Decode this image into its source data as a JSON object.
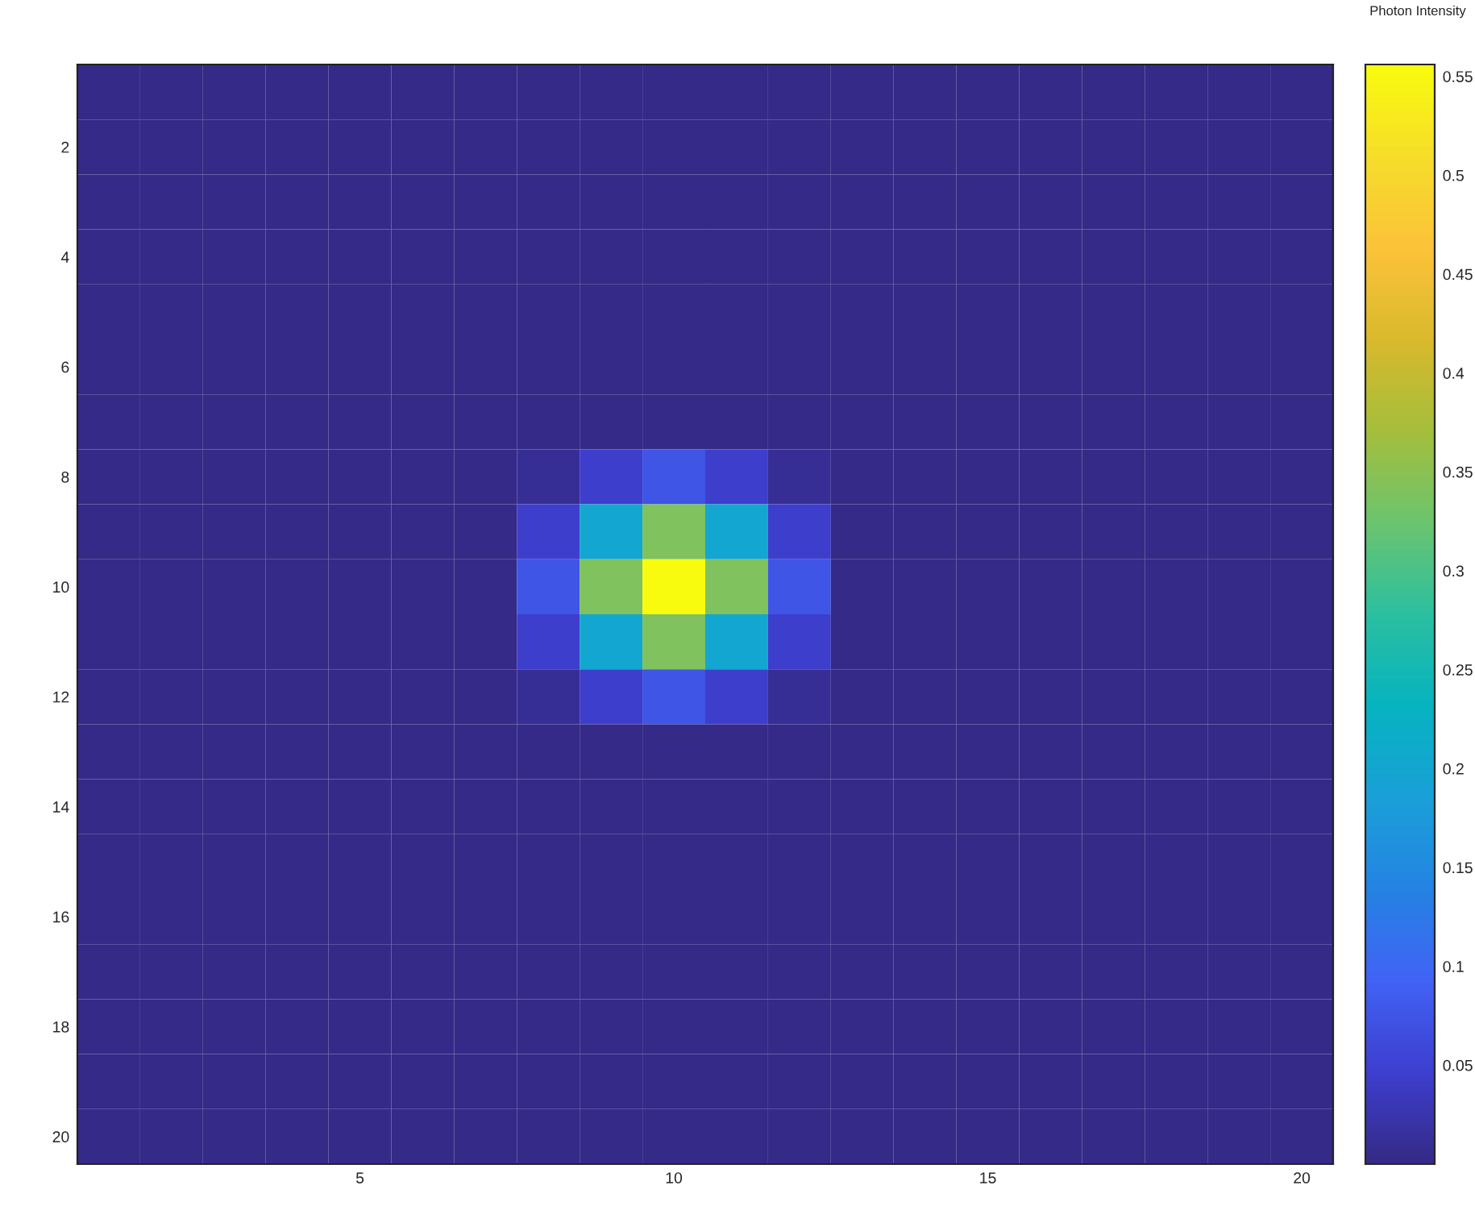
{
  "chart_data": {
    "type": "heatmap",
    "clabel": "Photon Intensity",
    "clim": [
      0,
      0.556
    ],
    "cticks": [
      0.05,
      0.1,
      0.15,
      0.2,
      0.25,
      0.3,
      0.35,
      0.4,
      0.45,
      0.5,
      0.55
    ],
    "xlim": [
      0.5,
      20.5
    ],
    "xticks": [
      5,
      10,
      15,
      20
    ],
    "ylim": [
      20.5,
      0.5
    ],
    "yticks": [
      2,
      4,
      6,
      8,
      10,
      12,
      14,
      16,
      18,
      20
    ],
    "grid": false,
    "cells": [
      [
        0,
        0,
        0,
        0,
        0,
        0,
        0,
        0,
        0,
        0,
        0,
        0,
        0,
        0,
        0,
        0,
        0,
        0,
        0,
        0
      ],
      [
        0,
        0,
        0,
        0,
        0,
        0,
        0,
        0,
        0,
        0,
        0,
        0,
        0,
        0,
        0,
        0,
        0,
        0,
        0,
        0
      ],
      [
        0,
        0,
        0,
        0,
        0,
        0,
        0,
        0,
        0,
        0,
        0,
        0,
        0,
        0,
        0,
        0,
        0,
        0,
        0,
        0
      ],
      [
        0,
        0,
        0,
        0,
        0,
        0,
        0,
        0,
        0,
        0,
        0,
        0,
        0,
        0,
        0,
        0,
        0,
        0,
        0,
        0
      ],
      [
        0,
        0,
        0,
        0,
        0,
        0,
        0,
        0,
        0,
        0,
        0,
        0,
        0,
        0,
        0,
        0,
        0,
        0,
        0,
        0
      ],
      [
        0,
        0,
        0,
        0,
        0,
        0,
        0,
        0,
        0,
        0,
        0,
        0,
        0,
        0,
        0,
        0,
        0,
        0,
        0,
        0
      ],
      [
        0,
        0,
        0,
        0,
        0,
        0,
        0,
        0,
        0,
        0,
        0,
        0,
        0,
        0,
        0,
        0,
        0,
        0,
        0,
        0
      ],
      [
        0,
        0,
        0,
        0,
        0,
        0,
        0,
        0.01,
        0.045,
        0.075,
        0.045,
        0.01,
        0,
        0,
        0,
        0,
        0,
        0,
        0,
        0
      ],
      [
        0,
        0,
        0,
        0,
        0,
        0,
        0,
        0.045,
        0.2,
        0.34,
        0.2,
        0.045,
        0,
        0,
        0,
        0,
        0,
        0,
        0,
        0
      ],
      [
        0,
        0,
        0,
        0,
        0,
        0,
        0,
        0.075,
        0.34,
        0.555,
        0.34,
        0.075,
        0,
        0,
        0,
        0,
        0,
        0,
        0,
        0
      ],
      [
        0,
        0,
        0,
        0,
        0,
        0,
        0,
        0.045,
        0.2,
        0.34,
        0.2,
        0.045,
        0,
        0,
        0,
        0,
        0,
        0,
        0,
        0
      ],
      [
        0,
        0,
        0,
        0,
        0,
        0,
        0,
        0.01,
        0.045,
        0.075,
        0.045,
        0.01,
        0,
        0,
        0,
        0,
        0,
        0,
        0,
        0
      ],
      [
        0,
        0,
        0,
        0,
        0,
        0,
        0,
        0,
        0,
        0,
        0,
        0,
        0,
        0,
        0,
        0,
        0,
        0,
        0,
        0
      ],
      [
        0,
        0,
        0,
        0,
        0,
        0,
        0,
        0,
        0,
        0,
        0,
        0,
        0,
        0,
        0,
        0,
        0,
        0,
        0,
        0
      ],
      [
        0,
        0,
        0,
        0,
        0,
        0,
        0,
        0,
        0,
        0,
        0,
        0,
        0,
        0,
        0,
        0,
        0,
        0,
        0,
        0
      ],
      [
        0,
        0,
        0,
        0,
        0,
        0,
        0,
        0,
        0,
        0,
        0,
        0,
        0,
        0,
        0,
        0,
        0,
        0,
        0,
        0
      ],
      [
        0,
        0,
        0,
        0,
        0,
        0,
        0,
        0,
        0,
        0,
        0,
        0,
        0,
        0,
        0,
        0,
        0,
        0,
        0,
        0
      ],
      [
        0,
        0,
        0,
        0,
        0,
        0,
        0,
        0,
        0,
        0,
        0,
        0,
        0,
        0,
        0,
        0,
        0,
        0,
        0,
        0
      ],
      [
        0,
        0,
        0,
        0,
        0,
        0,
        0,
        0,
        0,
        0,
        0,
        0,
        0,
        0,
        0,
        0,
        0,
        0,
        0,
        0
      ],
      [
        0,
        0,
        0,
        0,
        0,
        0,
        0,
        0,
        0,
        0,
        0,
        0,
        0,
        0,
        0,
        0,
        0,
        0,
        0,
        0
      ]
    ]
  }
}
